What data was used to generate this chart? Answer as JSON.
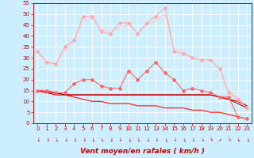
{
  "x": [
    0,
    1,
    2,
    3,
    4,
    5,
    6,
    7,
    8,
    9,
    10,
    11,
    12,
    13,
    14,
    15,
    16,
    17,
    18,
    19,
    20,
    21,
    22,
    23
  ],
  "series": [
    {
      "color": "#ffaaaa",
      "linewidth": 0.8,
      "marker": "D",
      "markersize": 2.0,
      "y": [
        33,
        28,
        27,
        35,
        38,
        49,
        49,
        42,
        41,
        46,
        46,
        41,
        46,
        49,
        53,
        33,
        32,
        30,
        29,
        29,
        25,
        14,
        11,
        7
      ]
    },
    {
      "color": "#ff6666",
      "linewidth": 0.8,
      "marker": "D",
      "markersize": 2.0,
      "y": [
        15,
        15,
        14,
        14,
        18,
        20,
        20,
        17,
        16,
        16,
        24,
        20,
        24,
        28,
        23,
        20,
        15,
        16,
        15,
        14,
        12,
        12,
        3,
        2
      ]
    },
    {
      "color": "#ffcccc",
      "linewidth": 0.8,
      "marker": null,
      "y": [
        33,
        28,
        27,
        33,
        37,
        47,
        48,
        43,
        42,
        44,
        45,
        41,
        45,
        47,
        50,
        34,
        33,
        30,
        29,
        29,
        25,
        15,
        12,
        8
      ]
    },
    {
      "color": "#dd0000",
      "linewidth": 0.9,
      "marker": null,
      "y": [
        15,
        14,
        13,
        13,
        13,
        13,
        13,
        13,
        13,
        13,
        13,
        13,
        13,
        13,
        13,
        13,
        13,
        13,
        13,
        13,
        12,
        11,
        10,
        8
      ]
    },
    {
      "color": "#ff2222",
      "linewidth": 0.9,
      "marker": null,
      "y": [
        15,
        15,
        14,
        13,
        12,
        11,
        10,
        10,
        9,
        9,
        9,
        8,
        8,
        8,
        7,
        7,
        7,
        6,
        6,
        5,
        5,
        4,
        3,
        2
      ]
    },
    {
      "color": "#bb0000",
      "linewidth": 0.8,
      "marker": null,
      "y": [
        15,
        14,
        14,
        13,
        13,
        13,
        13,
        13,
        13,
        13,
        13,
        13,
        13,
        13,
        13,
        13,
        13,
        13,
        13,
        13,
        12,
        11,
        9,
        7
      ]
    }
  ],
  "ylim": [
    0,
    55
  ],
  "yticks": [
    0,
    5,
    10,
    15,
    20,
    25,
    30,
    35,
    40,
    45,
    50,
    55
  ],
  "xticks": [
    0,
    1,
    2,
    3,
    4,
    5,
    6,
    7,
    8,
    9,
    10,
    11,
    12,
    13,
    14,
    15,
    16,
    17,
    18,
    19,
    20,
    21,
    22,
    23
  ],
  "xlabel": "Vent moyen/en rafales ( km/h )",
  "xlabel_color": "#cc0000",
  "xlabel_fontsize": 6.5,
  "bg_color": "#cceeff",
  "grid_color": "#ffffff",
  "tick_color": "#cc0000",
  "tick_fontsize": 5.0,
  "spine_color": "#cc0000"
}
